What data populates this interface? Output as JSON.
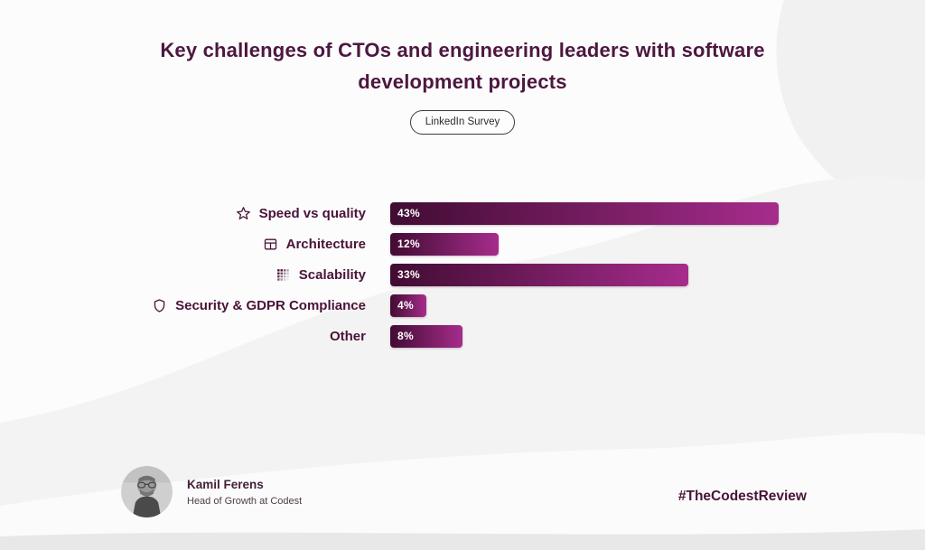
{
  "page": {
    "title": "Key challenges of CTOs and engineering leaders with software development projects",
    "badge": "LinkedIn Survey",
    "hashtag": "#TheCodestReview"
  },
  "author": {
    "name": "Kamil Ferens",
    "role": "Head of Growth at Codest"
  },
  "chart_data": {
    "type": "bar",
    "orientation": "horizontal",
    "title": "Key challenges of CTOs and engineering leaders with software development projects",
    "subtitle": "LinkedIn Survey",
    "categories": [
      "Speed vs quality",
      "Architecture",
      "Scalability",
      "Security & GDPR Compliance",
      "Other"
    ],
    "values": [
      43,
      12,
      33,
      4,
      8
    ],
    "value_labels": [
      "43%",
      "12%",
      "33%",
      "4%",
      "8%"
    ],
    "icons": [
      "star-icon",
      "architecture-icon",
      "scalability-icon",
      "shield-icon",
      null
    ],
    "xlim": [
      0,
      45
    ],
    "grid": false,
    "legend": false,
    "bar_gradient": [
      "#410c32",
      "#a62c8c"
    ]
  },
  "colors": {
    "title": "#4d173f",
    "label": "#4a1338",
    "bar_start": "#410c32",
    "bar_end": "#a62c8c",
    "background": "#fcfcfc",
    "wave": "#f3f3f3"
  }
}
